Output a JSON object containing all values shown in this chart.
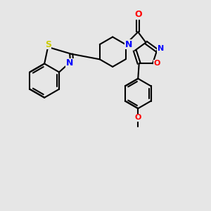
{
  "bg_color": "#e6e6e6",
  "bond_color": "#000000",
  "bond_width": 1.5,
  "atom_colors": {
    "N": "#0000ff",
    "O": "#ff0000",
    "S": "#cccc00",
    "C": "#000000"
  },
  "font_size": 9,
  "xlim": [
    0,
    10
  ],
  "ylim": [
    0,
    10
  ]
}
